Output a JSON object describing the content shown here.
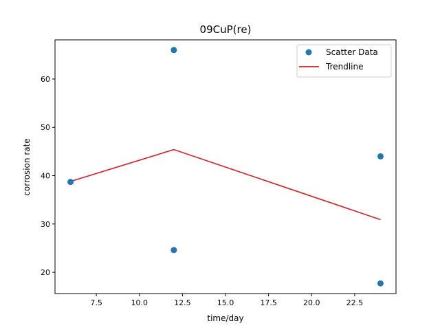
{
  "chart_data": {
    "type": "scatter",
    "title": "09CuP(re)",
    "xlabel": "time/day",
    "ylabel": "corrosion rate",
    "xlim": [
      5.1,
      24.9
    ],
    "ylim": [
      15.6,
      68.1
    ],
    "xticks": [
      "7.5",
      "10.0",
      "12.5",
      "15.0",
      "17.5",
      "20.0",
      "22.5"
    ],
    "yticks": [
      "20",
      "30",
      "40",
      "50",
      "60"
    ],
    "legend_position": "top-right",
    "grid": false,
    "series": [
      {
        "name": "Scatter Data",
        "kind": "scatter",
        "color": "#1f77b4",
        "points": [
          [
            6,
            38.7
          ],
          [
            12,
            66.0
          ],
          [
            12,
            24.6
          ],
          [
            24,
            44.0
          ],
          [
            24,
            17.7
          ]
        ]
      },
      {
        "name": "Trendline",
        "kind": "line",
        "color": "#e31a1c",
        "points": [
          [
            6,
            38.8
          ],
          [
            12,
            45.4
          ],
          [
            24,
            30.9
          ]
        ]
      }
    ]
  }
}
